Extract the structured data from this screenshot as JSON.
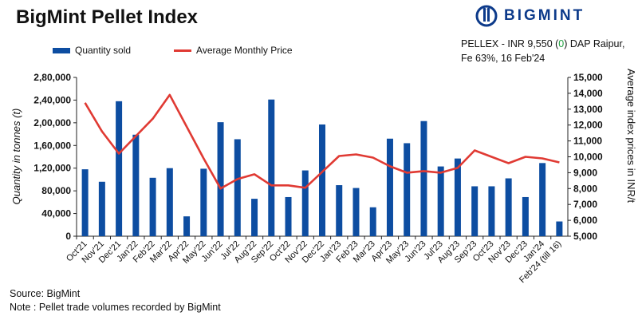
{
  "header": {
    "title": "BigMint Pellet Index",
    "logo_text": "BIGMINT",
    "pellex_prefix": "PELLEX - INR 9,550 (",
    "pellex_change": "0",
    "pellex_suffix": ") DAP Raipur,",
    "pellex_line2": "Fe 63%, 16 Feb'24"
  },
  "legend": {
    "bar_label": "Quantity sold",
    "line_label": "Average Monthly Price"
  },
  "footer": {
    "source": "Source: BigMint",
    "note": "Note : Pellet trade volumes recorded by BigMint"
  },
  "colors": {
    "bar": "#0d4da1",
    "line": "#e03a33",
    "change_positive": "#1e9e3e",
    "brand": "#0c3a8a"
  },
  "chart_data": {
    "type": "bar",
    "title": "BigMint Pellet Index",
    "categories": [
      "Oct'21",
      "Nov'21",
      "Dec'21",
      "Jan'22",
      "Feb'22",
      "Mar'22",
      "Apr'22",
      "May'22",
      "Jun'22",
      "Jul'22",
      "Aug'22",
      "Sep'22",
      "Oct'22",
      "Nov'22",
      "Dec'22",
      "Jan'23",
      "Feb'23",
      "Mar'23",
      "Apr'23",
      "May'23",
      "Jun'23",
      "Jul'23",
      "Aug'23",
      "Sep'23",
      "Oct'23",
      "Nov'23",
      "Dec'23",
      "Jan'24",
      "Feb'24 (till 16)"
    ],
    "series": [
      {
        "name": "Quantity sold",
        "type": "bar",
        "axis": "left",
        "values": [
          118000,
          96000,
          238000,
          179000,
          103000,
          120000,
          35000,
          119000,
          201000,
          171000,
          66000,
          241000,
          69000,
          116000,
          197000,
          90000,
          85000,
          51000,
          172000,
          164000,
          203000,
          123000,
          137000,
          88000,
          88000,
          102000,
          69000,
          129000,
          26000
        ]
      },
      {
        "name": "Average Monthly Price",
        "type": "line",
        "axis": "right",
        "values": [
          13400,
          11600,
          10200,
          11300,
          12400,
          13900,
          11900,
          9900,
          8000,
          8600,
          8900,
          8200,
          8200,
          8050,
          9050,
          10050,
          10150,
          9950,
          9400,
          9000,
          9100,
          9000,
          9300,
          10400,
          10000,
          9600,
          10000,
          9900,
          9650
        ]
      }
    ],
    "ylabel": "Quantity in tonnes (t)",
    "ylim": [
      0,
      280000
    ],
    "yticks": [
      "0",
      "40,000",
      "80,000",
      "1,20,000",
      "1,60,000",
      "2,00,000",
      "2,40,000",
      "2,80,000"
    ],
    "y2label": "Average index prices in INR/t",
    "y2lim": [
      5000,
      15000
    ],
    "y2ticks": [
      "5,000",
      "6,000",
      "7,000",
      "8,000",
      "9,000",
      "10,000",
      "11,000",
      "12,000",
      "13,000",
      "14,000",
      "15,000"
    ],
    "grid": false,
    "legend_position": "top-left"
  }
}
